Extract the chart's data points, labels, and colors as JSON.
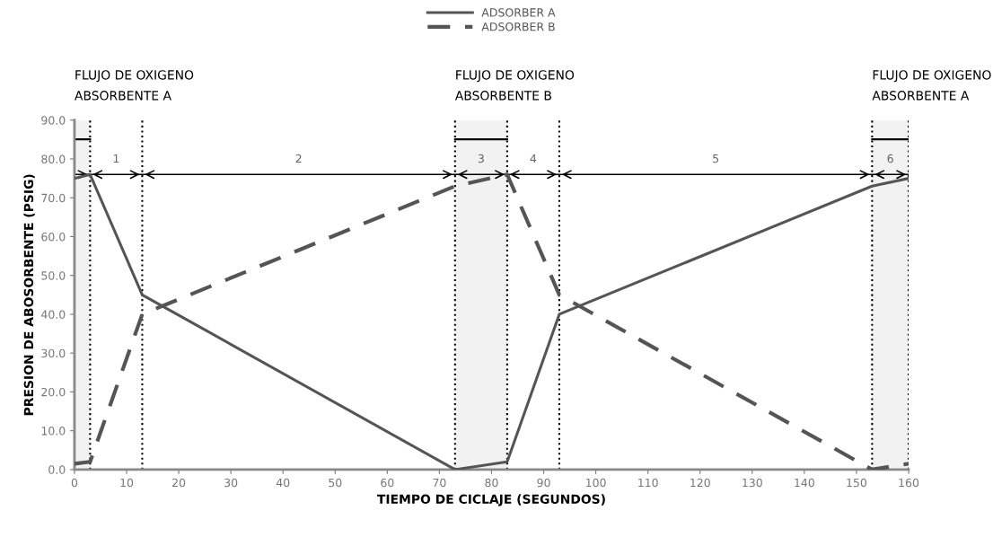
{
  "chart_data": {
    "type": "line",
    "xlabel": "TIEMPO DE CICLAJE (SEGUNDOS)",
    "ylabel": "PRESION DE ABOSORBENTE (PSIG)",
    "x": [
      0,
      3,
      13,
      73,
      83,
      93,
      153,
      160
    ],
    "series": [
      {
        "name": "ADSORBER A",
        "color": "#555555",
        "line_style": "solid",
        "values": [
          75,
          76,
          45,
          0,
          2,
          40,
          73,
          75
        ]
      },
      {
        "name": "ADSORBER B",
        "color": "#555555",
        "line_style": "dashed",
        "values": [
          1.5,
          2,
          40,
          73,
          76,
          45,
          0,
          1.5
        ]
      }
    ],
    "xlim": [
      0,
      160
    ],
    "xticks": [
      0,
      10,
      20,
      30,
      40,
      50,
      60,
      70,
      80,
      90,
      100,
      110,
      120,
      130,
      140,
      150,
      160
    ],
    "ylim": [
      0,
      90
    ],
    "yticks": [
      {
        "value": 0,
        "label": "0.0"
      },
      {
        "value": 10,
        "label": "10.0"
      },
      {
        "value": 20,
        "label": "20.0"
      },
      {
        "value": 30,
        "label": "30.0"
      },
      {
        "value": 40,
        "label": "40.0"
      },
      {
        "value": 50,
        "label": "50.0"
      },
      {
        "value": 60,
        "label": "60.0"
      },
      {
        "value": 70,
        "label": "70.0"
      },
      {
        "value": 80,
        "label": "80.0"
      },
      {
        "value": 90,
        "label": "90.0"
      }
    ],
    "ref_lines": [
      {
        "axis": "x",
        "value": 3,
        "color": "#000000",
        "line_style": "dotted"
      },
      {
        "axis": "x",
        "value": 13,
        "color": "#000000",
        "line_style": "dotted"
      },
      {
        "axis": "x",
        "value": 73,
        "color": "#000000",
        "line_style": "dotted"
      },
      {
        "axis": "x",
        "value": 83,
        "color": "#000000",
        "line_style": "dotted"
      },
      {
        "axis": "x",
        "value": 93,
        "color": "#000000",
        "line_style": "dotted"
      },
      {
        "axis": "x",
        "value": 153,
        "color": "#000000",
        "line_style": "dotted"
      },
      {
        "axis": "x",
        "value": 160,
        "color": "#000000",
        "line_style": "dotted"
      },
      {
        "axis": "y",
        "value": 76,
        "color": "#000000",
        "line_style": "solid"
      }
    ],
    "bands": [
      {
        "axis": "x",
        "from": 0,
        "to": 3,
        "label": "FLUJO DE OXIGENO\nABSORBENTE A",
        "color": "#000000"
      },
      {
        "axis": "x",
        "from": 73,
        "to": 83,
        "label": "FLUJO DE OXIGENO\nABSORBENTE B",
        "color": "#000000"
      },
      {
        "axis": "x",
        "from": 153,
        "to": 160,
        "label": "FLUJO DE OXIGENO\nABSORBENTE A",
        "color": "#000000"
      }
    ],
    "annotations": [
      "1",
      "2",
      "3",
      "4",
      "5",
      "6"
    ],
    "grid": false,
    "legend": "top",
    "marker": "none"
  }
}
